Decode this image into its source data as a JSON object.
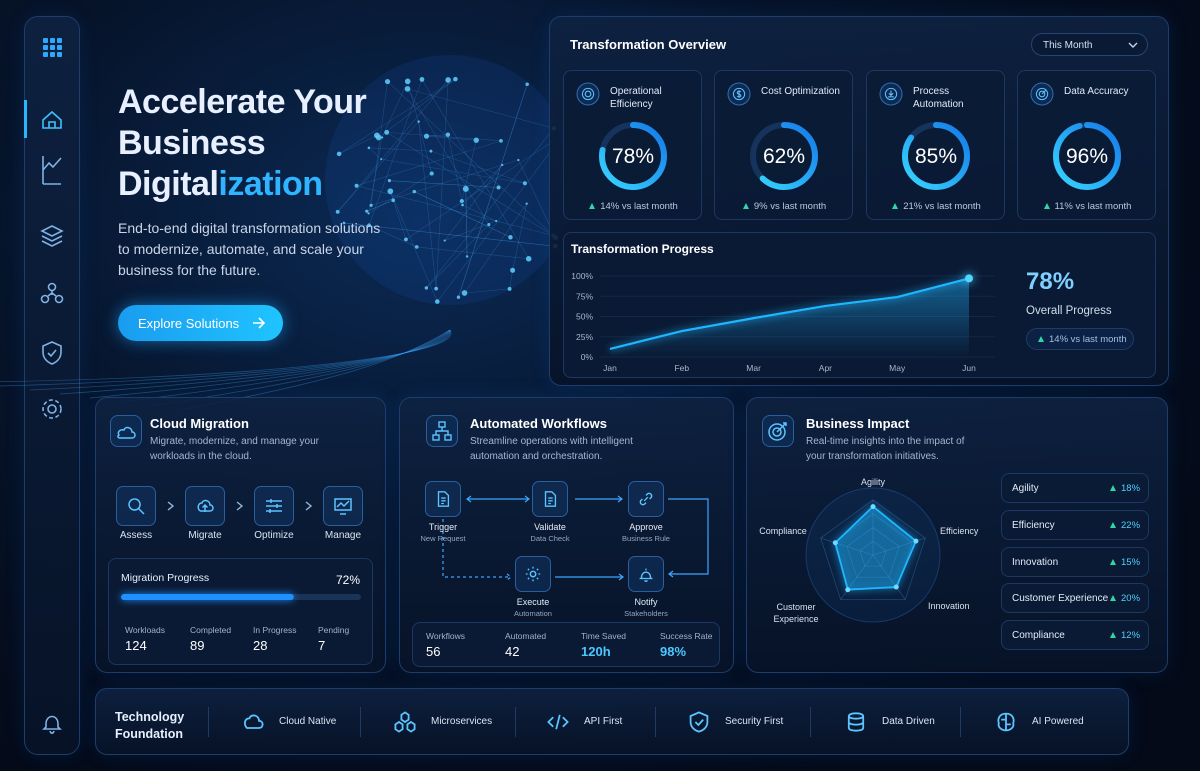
{
  "hero": {
    "title": "Accelerate Your Business Digital",
    "title_highlight": "ization",
    "description": "End-to-end digital transformation solutions to modernize, automate, and scale your business for the future.",
    "button": "Explore Solutions"
  },
  "overview": {
    "title": "Transformation Overview",
    "period": "This Month",
    "gauge_range": [
      0,
      100
    ],
    "kpis": [
      {
        "name": "Operational Efficiency",
        "value": 78,
        "value_label": "78%",
        "change": "14% vs last month"
      },
      {
        "name": "Cost Optimization",
        "value": 62,
        "value_label": "62%",
        "change": "9% vs last month"
      },
      {
        "name": "Process Automation",
        "value": 85,
        "value_label": "85%",
        "change": "21% vs last month"
      },
      {
        "name": "Data Accuracy",
        "value": 96,
        "value_label": "96%",
        "change": "11% vs last month"
      }
    ],
    "progress": {
      "title": "Transformation Progress",
      "type": "line",
      "categories": [
        "Jan",
        "Feb",
        "Mar",
        "Apr",
        "May",
        "Jun"
      ],
      "values": [
        10,
        32,
        48,
        63,
        74,
        97
      ],
      "ylim": [
        0,
        100
      ],
      "yticks": [
        {
          "value": 0,
          "label": "0%"
        },
        {
          "value": 25,
          "label": "25%"
        },
        {
          "value": 50,
          "label": "50%"
        },
        {
          "value": 75,
          "label": "75%"
        },
        {
          "value": 100,
          "label": "100%"
        }
      ],
      "color": "#1fb6ff",
      "overall": "78%",
      "overall_label": "Overall Progress",
      "change": "14% vs last month"
    }
  },
  "cloud_migration": {
    "title": "Cloud Migration",
    "description": "Migrate, modernize, and manage your workloads in the cloud.",
    "steps": [
      "Assess",
      "Migrate",
      "Optimize",
      "Manage"
    ],
    "progress": {
      "label": "Migration Progress",
      "value": 72,
      "value_label": "72%",
      "range": [
        0,
        100
      ]
    },
    "stats": [
      {
        "label": "Workloads",
        "value": 124
      },
      {
        "label": "Completed",
        "value": 89
      },
      {
        "label": "In Progress",
        "value": 28
      },
      {
        "label": "Pending",
        "value": 7
      }
    ]
  },
  "workflows": {
    "title": "Automated Workflows",
    "description": "Streamline operations with intelligent automation and orchestration.",
    "nodes": [
      {
        "name": "Trigger",
        "detail": "New Request"
      },
      {
        "name": "Validate",
        "detail": "Data Check"
      },
      {
        "name": "Approve",
        "detail": "Business Rule"
      },
      {
        "name": "Execute",
        "detail": "Automation"
      },
      {
        "name": "Notify",
        "detail": "Stakeholders"
      }
    ],
    "stats": [
      {
        "label": "Workflows",
        "value": 56
      },
      {
        "label": "Automated",
        "value": 42
      },
      {
        "label": "Time Saved",
        "value": "120h"
      },
      {
        "label": "Success Rate",
        "value": "98%"
      }
    ]
  },
  "business_impact": {
    "title": "Business Impact",
    "description": "Real-time insights into the impact of your transformation initiatives.",
    "radar": {
      "type": "radar",
      "axes": [
        "Agility",
        "Efficiency",
        "Innovation",
        "Customer Experience",
        "Compliance"
      ],
      "values": [
        88,
        82,
        72,
        78,
        72
      ],
      "rlim": [
        0,
        100
      ],
      "color": "#1fb6ff"
    },
    "metrics": [
      {
        "name": "Agility",
        "change": "18%"
      },
      {
        "name": "Efficiency",
        "change": "22%"
      },
      {
        "name": "Innovation",
        "change": "15%"
      },
      {
        "name": "Customer Experience",
        "change": "20%"
      },
      {
        "name": "Compliance",
        "change": "12%"
      }
    ]
  },
  "foundation": {
    "title": "Technology Foundation",
    "items": [
      "Cloud Native",
      "Microservices",
      "API First",
      "Security First",
      "Data Driven",
      "AI Powered"
    ]
  }
}
